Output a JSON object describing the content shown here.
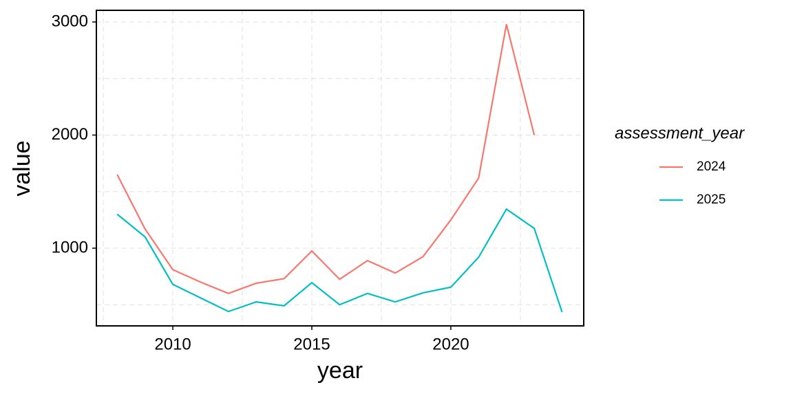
{
  "chart_data": {
    "type": "line",
    "x_label": "year",
    "y_label": "value",
    "legend_title": "assessment_year",
    "x": [
      2008,
      2009,
      2010,
      2011,
      2012,
      2013,
      2014,
      2015,
      2016,
      2017,
      2018,
      2019,
      2020,
      2021,
      2022,
      2023,
      2024
    ],
    "series": [
      {
        "name": "2024",
        "color": "#F8766D",
        "values": [
          1650,
          1170,
          810,
          700,
          600,
          690,
          730,
          975,
          725,
          890,
          780,
          925,
          1250,
          1620,
          2980,
          2000,
          null
        ]
      },
      {
        "name": "2025",
        "color": "#00BFC4",
        "values": [
          1300,
          1100,
          680,
          560,
          440,
          525,
          490,
          695,
          500,
          600,
          525,
          605,
          655,
          920,
          1345,
          1175,
          435
        ]
      }
    ],
    "xlim": [
      2007.25,
      2024.78
    ],
    "xticks": [
      2010,
      2015,
      2020
    ],
    "ylim": [
      313,
      3103
    ],
    "yticks": [
      1000,
      2000,
      3000
    ],
    "grid": true,
    "legend": "right"
  }
}
